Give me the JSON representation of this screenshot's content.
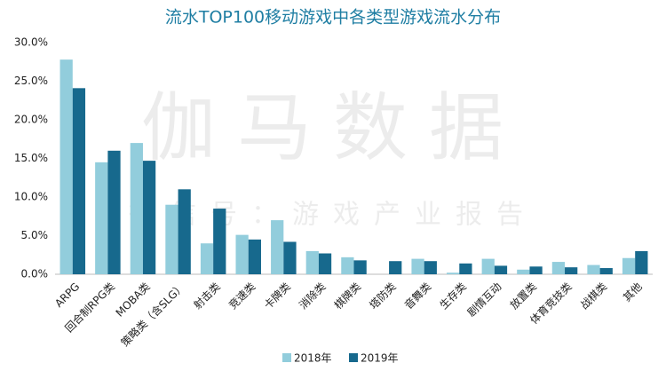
{
  "chart_data": {
    "type": "bar",
    "title": "流水TOP100移动游戏中各类型游戏流水分布",
    "watermark": [
      "伽马数据",
      "微信号：游戏产业报告"
    ],
    "categories": [
      "ARPG",
      "回合制RPG类",
      "MOBA类",
      "策略类（含SLG）",
      "射击类",
      "竞速类",
      "卡牌类",
      "消除类",
      "棋牌类",
      "塔防类",
      "音舞类",
      "生存类",
      "剧情互动",
      "放置类",
      "体育竞技类",
      "战棋类",
      "其他"
    ],
    "series": [
      {
        "name": "2018年",
        "color": "#92cddc",
        "values": [
          27.8,
          14.5,
          17.0,
          9.0,
          4.0,
          5.1,
          7.0,
          3.0,
          2.2,
          0,
          2.0,
          0.2,
          2.0,
          0.6,
          1.6,
          1.2,
          2.1
        ]
      },
      {
        "name": "2019年",
        "color": "#17698d",
        "values": [
          24.1,
          16.0,
          14.7,
          11.0,
          8.5,
          4.5,
          4.2,
          2.7,
          1.8,
          1.7,
          1.7,
          1.4,
          1.1,
          1.0,
          0.9,
          0.8,
          3.0
        ]
      }
    ],
    "ylim": [
      0,
      30
    ],
    "yticks": [
      {
        "value": 0,
        "label": "0.0%"
      },
      {
        "value": 5,
        "label": "5.0%"
      },
      {
        "value": 10,
        "label": "10.0%"
      },
      {
        "value": 15,
        "label": "15.0%"
      },
      {
        "value": 20,
        "label": "20.0%"
      },
      {
        "value": 25,
        "label": "25.0%"
      },
      {
        "value": 30,
        "label": "30.0%"
      }
    ],
    "grid": false,
    "legend": "bottom"
  }
}
